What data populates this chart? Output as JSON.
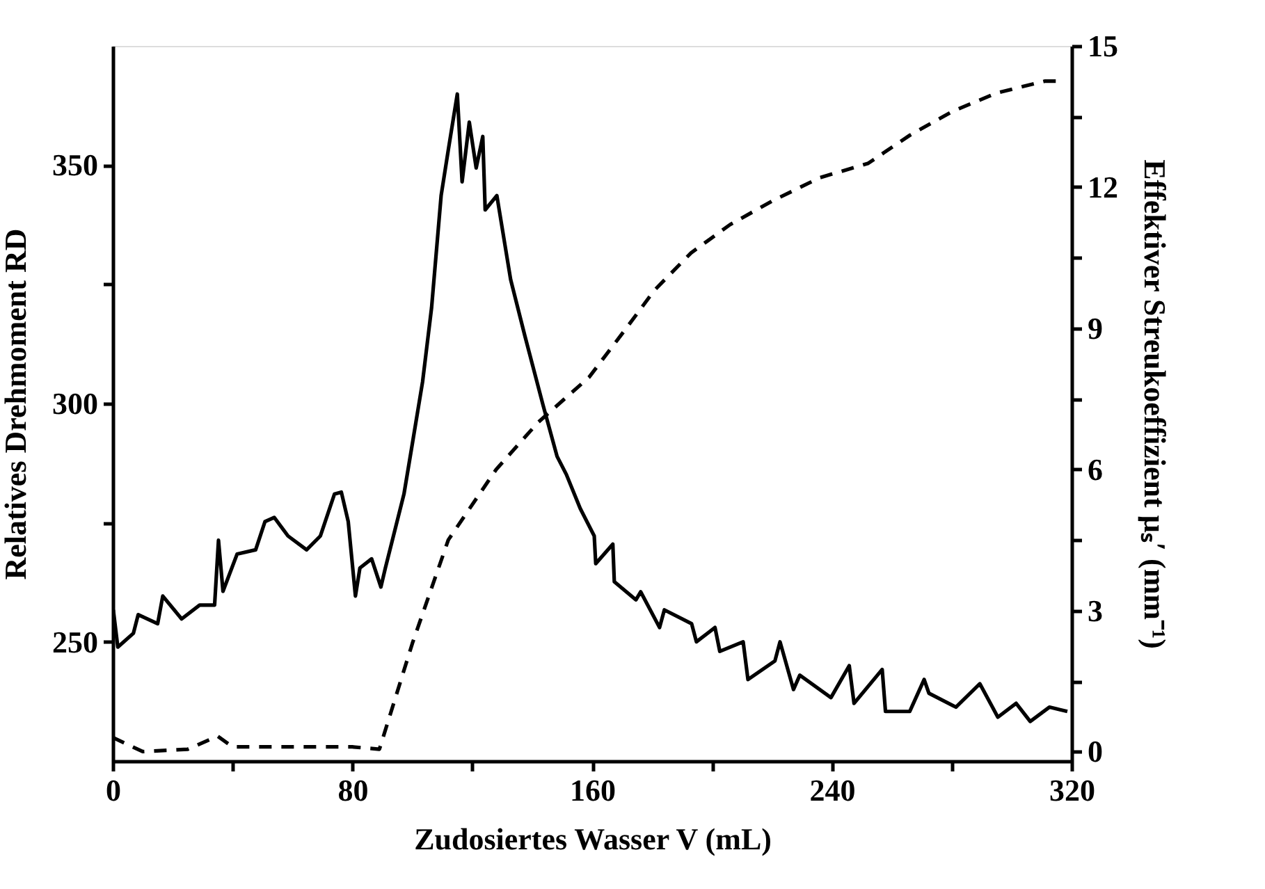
{
  "chart_data": {
    "type": "line",
    "xlabel": "Zudosiertes Wasser V (mL)",
    "ylabel": "Relatives Drehmoment RD",
    "y2label": "Effektiver Streukoeffizient μₛ′ (mm⁻¹)",
    "xlim": [
      0,
      320
    ],
    "xticks": [
      0,
      {
        "value": 40,
        "label": null
      },
      80,
      {
        "value": 120,
        "label": null
      },
      160,
      {
        "value": 200,
        "label": null
      },
      240,
      {
        "value": 280,
        "label": null
      },
      320
    ],
    "ylim": [
      225,
      375
    ],
    "yticks": [
      250,
      {
        "value": 275,
        "label": null
      },
      300,
      {
        "value": 325,
        "label": null
      },
      350
    ],
    "y2lim": [
      -0.2,
      15
    ],
    "y2ticks": [
      0,
      {
        "value": 1.5,
        "label": null
      },
      3,
      {
        "value": 4.5,
        "label": null
      },
      6,
      {
        "value": 7.5,
        "label": null
      },
      9,
      {
        "value": 10.5,
        "label": null
      },
      12,
      {
        "value": 13.5,
        "label": null
      },
      15
    ],
    "grid": false,
    "marker": "none",
    "series": [
      {
        "color": "#000000",
        "axis": "y",
        "line_style": "solid",
        "x": [
          0.2,
          1.7,
          6.9,
          8.5,
          15,
          16.7,
          23,
          29,
          34,
          35.3,
          36.8,
          41.5,
          47.7,
          50.8,
          53.9,
          58.5,
          64.7,
          69.3,
          74,
          76.3,
          78.6,
          81,
          82.5,
          86.4,
          89.5,
          91,
          97.2,
          100.3,
          103.4,
          106.4,
          109.6,
          112,
          115,
          116.6,
          119,
          121.3,
          123.5,
          124.3,
          128.2,
          132.8,
          137.5,
          143.6,
          148.3,
          151.4,
          156,
          160.7,
          161.2,
          166.9,
          167.4,
          174.6,
          176.2,
          182.5,
          184.1,
          193.2,
          194.8,
          201,
          202.6,
          210.4,
          212,
          221,
          222.7,
          227.2,
          229.3,
          239.7,
          245.8,
          247.4,
          256.8,
          257.9,
          266,
          270.8,
          272.4,
          281.4,
          289.4,
          295.4,
          301.5,
          306.2,
          312.6,
          318.6
        ],
        "values": [
          256.7,
          248.9,
          251.8,
          255.7,
          253.8,
          259.6,
          254.8,
          257.7,
          257.7,
          271.3,
          260.6,
          268.4,
          269.3,
          275.2,
          276.1,
          272.2,
          269.3,
          272.2,
          281,
          281.4,
          275.2,
          259.6,
          265.5,
          267.4,
          261.5,
          265.5,
          281,
          292.7,
          304.5,
          320,
          343.6,
          353.2,
          364.9,
          346.5,
          359,
          349.4,
          356,
          340.6,
          343.6,
          326,
          314.3,
          299.7,
          288.9,
          285.1,
          278,
          272.2,
          266.4,
          270.5,
          262.6,
          258.8,
          260.5,
          253,
          256.7,
          253.8,
          250,
          253,
          248,
          250,
          242.1,
          246,
          250,
          240,
          243,
          238.3,
          245,
          237.1,
          244.2,
          235.4,
          235.4,
          242.1,
          239.2,
          236.3,
          241.2,
          234.2,
          237.1,
          233.3,
          236.3,
          235.4
        ]
      },
      {
        "color": "#000000",
        "axis": "y2",
        "line_style": "dashed",
        "x": [
          0,
          10,
          25,
          35,
          40,
          60,
          80,
          89,
          100,
          112,
          128,
          142,
          159,
          171.4,
          180.7,
          193,
          206,
          220,
          236,
          252,
          266,
          280,
          295,
          311,
          315
        ],
        "values": [
          0.3,
          0,
          0.05,
          0.33,
          0.1,
          0.1,
          0.1,
          0.05,
          2.3,
          4.5,
          6.0,
          7.0,
          7.96,
          9.0,
          9.8,
          10.6,
          11.2,
          11.7,
          12.2,
          12.5,
          13.1,
          13.6,
          14.0,
          14.25,
          14.25
        ]
      }
    ]
  }
}
